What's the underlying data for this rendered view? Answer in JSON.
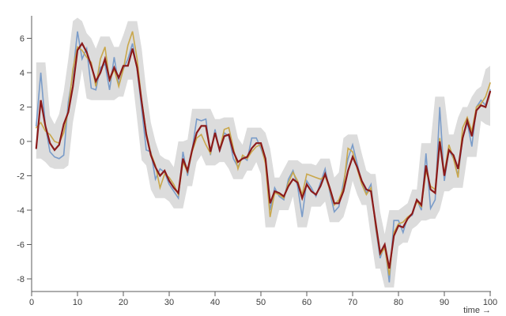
{
  "page": {
    "background": "#ffffff"
  },
  "chart_data": {
    "type": "line",
    "title": "",
    "xlabel": "time →",
    "ylabel": "",
    "x_range": [
      0,
      100
    ],
    "y_range": [
      -8.7,
      7.3
    ],
    "x_ticks": [
      0,
      10,
      20,
      30,
      40,
      50,
      60,
      70,
      80,
      90,
      100
    ],
    "y_ticks": [
      -8,
      -6,
      -4,
      -2,
      0,
      2,
      4,
      6
    ],
    "grid": false,
    "legend": "none",
    "axis_color": "#5b5b5b",
    "tick_label_color": "#3d3d3d",
    "x": [
      1,
      2,
      3,
      4,
      5,
      6,
      7,
      8,
      9,
      10,
      11,
      12,
      13,
      14,
      15,
      16,
      17,
      18,
      19,
      20,
      21,
      22,
      23,
      24,
      25,
      26,
      27,
      28,
      29,
      30,
      31,
      32,
      33,
      34,
      35,
      36,
      37,
      38,
      39,
      40,
      41,
      42,
      43,
      44,
      45,
      46,
      47,
      48,
      49,
      50,
      51,
      52,
      53,
      54,
      55,
      56,
      57,
      58,
      59,
      60,
      61,
      62,
      63,
      64,
      65,
      66,
      67,
      68,
      69,
      70,
      71,
      72,
      73,
      74,
      75,
      76,
      77,
      78,
      79,
      80,
      81,
      82,
      83,
      84,
      85,
      86,
      87,
      88,
      89,
      90,
      91,
      92,
      93,
      94,
      95,
      96,
      97,
      98,
      99,
      100
    ],
    "band": {
      "name": "gray-band",
      "color": "#dcdcdc",
      "lower": [
        -1.0,
        -1.0,
        -1.2,
        -1.5,
        -1.6,
        -1.6,
        -1.6,
        -1.4,
        1.1,
        2.6,
        4.2,
        2.5,
        2.4,
        2.4,
        2.4,
        2.4,
        2.4,
        2.4,
        2.6,
        2.6,
        3.6,
        3.6,
        1.3,
        -1.1,
        -1.4,
        -2.8,
        -3.3,
        -3.3,
        -3.3,
        -3.5,
        -3.9,
        -3.9,
        -3.9,
        -2.6,
        -2.6,
        -1.2,
        -0.8,
        -1.4,
        -1.4,
        -1.4,
        -1.2,
        -1.2,
        -1.6,
        -2.2,
        -2.2,
        -2.2,
        -1.7,
        -1.7,
        -1.2,
        -1.9,
        -5.0,
        -5.0,
        -5.0,
        -4.0,
        -4.0,
        -4.0,
        -3.2,
        -5.0,
        -5.0,
        -5.0,
        -3.8,
        -3.8,
        -3.8,
        -3.5,
        -4.7,
        -4.7,
        -4.7,
        -4.4,
        -3.5,
        -2.3,
        -3.1,
        -3.7,
        -3.7,
        -5.6,
        -7.4,
        -7.4,
        -8.5,
        -8.5,
        -8.5,
        -6.1,
        -5.9,
        -5.9,
        -5.1,
        -4.9,
        -4.6,
        -4.6,
        -4.5,
        -4.5,
        -4.0,
        -2.9,
        -2.9,
        -2.7,
        -2.7,
        -2.7,
        -0.9,
        -0.9,
        -0.9,
        1.2,
        1.0,
        0.9
      ],
      "upper": [
        4.6,
        4.6,
        4.6,
        1.5,
        1.0,
        1.6,
        2.9,
        4.8,
        7.0,
        7.2,
        7.0,
        6.3,
        6.0,
        5.4,
        6.1,
        6.1,
        6.1,
        5.5,
        5.5,
        6.2,
        7.0,
        7.0,
        7.0,
        5.4,
        3.0,
        1.1,
        0.0,
        -0.8,
        -1.0,
        -1.1,
        -1.5,
        0.0,
        0.0,
        0.1,
        1.9,
        1.9,
        1.9,
        1.9,
        1.9,
        1.3,
        1.3,
        1.4,
        1.4,
        1.4,
        0.2,
        -0.2,
        0.8,
        0.8,
        0.8,
        0.8,
        0.5,
        -0.4,
        -2.1,
        -2.1,
        -1.6,
        -1.1,
        -1.1,
        -1.1,
        -1.3,
        -1.3,
        -1.3,
        -1.4,
        -1.0,
        -1.0,
        -1.0,
        -2.1,
        -1.8,
        0.2,
        0.4,
        0.4,
        0.4,
        -0.7,
        -1.7,
        -1.9,
        -1.9,
        -4.1,
        -5.4,
        -4.0,
        -4.0,
        -4.0,
        -3.8,
        -3.6,
        -2.8,
        -2.8,
        -0.1,
        -0.1,
        -0.1,
        2.6,
        2.6,
        2.6,
        0.4,
        0.4,
        1.4,
        2.0,
        2.0,
        2.6,
        3.0,
        3.2,
        4.2,
        4.4
      ]
    },
    "series": [
      {
        "name": "series-blue",
        "color": "#7a9cc9",
        "width": 1.6,
        "values": [
          0.9,
          4.0,
          0.9,
          -0.6,
          -0.9,
          -1.0,
          -0.8,
          2.3,
          3.9,
          6.4,
          4.8,
          5.4,
          3.1,
          3.0,
          4.3,
          4.5,
          3.0,
          4.9,
          3.3,
          4.2,
          4.8,
          5.7,
          4.2,
          1.9,
          -0.5,
          -0.6,
          -2.2,
          -1.6,
          -1.8,
          -2.5,
          -2.9,
          -3.3,
          -0.6,
          -2.0,
          -0.5,
          1.3,
          1.2,
          1.3,
          -0.8,
          0.7,
          -0.6,
          0.5,
          0.3,
          -1.0,
          -1.5,
          -0.9,
          -1.1,
          0.2,
          0.2,
          -0.4,
          -1.2,
          -4.0,
          -2.7,
          -3.2,
          -3.4,
          -2.2,
          -1.7,
          -2.6,
          -4.4,
          -2.3,
          -2.7,
          -3.2,
          -2.4,
          -1.6,
          -2.9,
          -4.1,
          -3.8,
          -2.4,
          -1.0,
          -0.2,
          -1.3,
          -2.4,
          -3.0,
          -2.5,
          -5.0,
          -6.8,
          -6.0,
          -8.2,
          -4.6,
          -4.6,
          -5.3,
          -4.4,
          -4.3,
          -3.4,
          -4.0,
          -0.7,
          -3.9,
          -3.4,
          2.0,
          -2.3,
          -0.5,
          -1.0,
          -2.0,
          0.2,
          1.1,
          -0.3,
          2.0,
          2.4,
          2.1,
          3.0
        ]
      },
      {
        "name": "series-gold",
        "color": "#c9a74b",
        "width": 1.6,
        "values": [
          0.8,
          1.1,
          0.6,
          0.4,
          0.0,
          -0.1,
          0.5,
          1.8,
          4.2,
          5.5,
          5.3,
          4.9,
          4.6,
          3.2,
          4.8,
          5.5,
          3.5,
          4.2,
          3.2,
          4.2,
          5.6,
          6.4,
          4.8,
          2.4,
          0.5,
          -0.7,
          -1.4,
          -2.7,
          -1.9,
          -2.1,
          -2.5,
          -3.1,
          -1.2,
          -1.8,
          -0.6,
          0.2,
          0.4,
          -0.2,
          -0.7,
          0.5,
          -0.5,
          0.7,
          0.8,
          -0.4,
          -1.6,
          -0.8,
          -1.0,
          -0.6,
          -0.3,
          -0.2,
          -1.3,
          -4.4,
          -3.0,
          -3.1,
          -3.3,
          -2.4,
          -1.8,
          -2.3,
          -3.1,
          -1.9,
          -2.0,
          -2.1,
          -2.2,
          -2.0,
          -2.8,
          -3.7,
          -3.4,
          -2.7,
          -0.4,
          -0.6,
          -1.6,
          -2.5,
          -3.1,
          -2.7,
          -4.9,
          -6.6,
          -6.2,
          -7.8,
          -5.3,
          -4.8,
          -4.7,
          -4.4,
          -4.2,
          -3.5,
          -3.8,
          -1.7,
          -2.6,
          -2.8,
          0.2,
          -1.9,
          -0.2,
          -1.0,
          -2.1,
          0.8,
          1.4,
          0.6,
          2.0,
          2.2,
          2.6,
          3.4
        ]
      },
      {
        "name": "series-red",
        "color": "#8b1a1a",
        "width": 2.2,
        "values": [
          -0.4,
          2.4,
          0.9,
          -0.1,
          -0.5,
          -0.2,
          1.0,
          1.7,
          3.2,
          5.3,
          5.7,
          5.2,
          4.4,
          3.5,
          4.0,
          4.8,
          3.6,
          4.3,
          3.7,
          4.4,
          4.4,
          5.4,
          4.3,
          2.3,
          0.4,
          -0.8,
          -1.5,
          -2.0,
          -1.7,
          -2.3,
          -2.7,
          -3.0,
          -1.0,
          -1.7,
          -0.5,
          0.5,
          0.9,
          0.9,
          -0.6,
          0.5,
          -0.5,
          0.3,
          0.4,
          -0.6,
          -1.2,
          -1.0,
          -0.9,
          -0.4,
          -0.1,
          -0.1,
          -1.0,
          -3.6,
          -2.9,
          -3.0,
          -3.2,
          -2.6,
          -2.2,
          -2.4,
          -3.3,
          -2.5,
          -2.9,
          -3.1,
          -2.6,
          -1.9,
          -2.7,
          -3.6,
          -3.6,
          -2.9,
          -1.7,
          -0.9,
          -1.5,
          -2.3,
          -2.8,
          -2.9,
          -4.7,
          -6.5,
          -6.0,
          -7.4,
          -5.5,
          -4.9,
          -5.0,
          -4.5,
          -4.2,
          -3.4,
          -3.7,
          -1.4,
          -2.8,
          -3.0,
          0.0,
          -2.0,
          -0.5,
          -0.8,
          -1.6,
          0.2,
          1.2,
          0.3,
          1.8,
          2.1,
          2.0,
          2.9
        ]
      }
    ]
  }
}
